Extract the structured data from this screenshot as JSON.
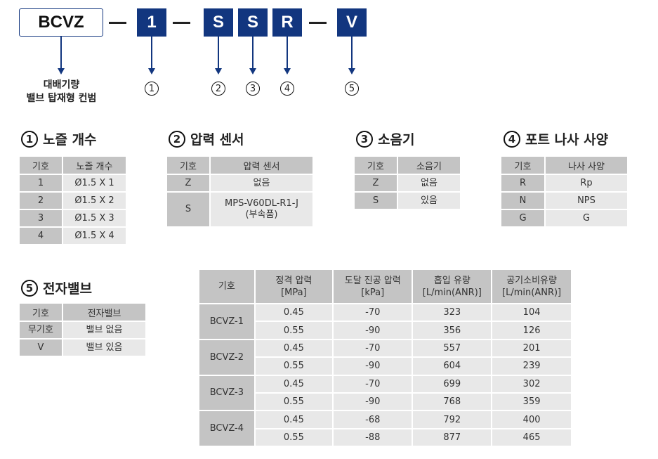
{
  "code": {
    "base": "BCVZ",
    "parts": [
      "1",
      "S",
      "S",
      "R",
      "V"
    ],
    "base_label": [
      "대배기량",
      "밸브 탑재형 컨범"
    ],
    "markers": [
      "①",
      "②",
      "③",
      "④",
      "⑤"
    ]
  },
  "sections": [
    {
      "num": "1",
      "title": "노즐 개수",
      "headers": [
        "기호",
        "노즐 개수"
      ],
      "rows": [
        [
          "1",
          "Ø1.5 X 1"
        ],
        [
          "2",
          "Ø1.5 X 2"
        ],
        [
          "3",
          "Ø1.5 X 3"
        ],
        [
          "4",
          "Ø1.5 X 4"
        ]
      ]
    },
    {
      "num": "2",
      "title": "압력 센서",
      "headers": [
        "기호",
        "압력 센서"
      ],
      "rows": [
        [
          "Z",
          "없음"
        ],
        [
          "S",
          "MPS-V60DL-R1-J\n(부속품)"
        ]
      ]
    },
    {
      "num": "3",
      "title": "소음기",
      "headers": [
        "기호",
        "소음기"
      ],
      "rows": [
        [
          "Z",
          "없음"
        ],
        [
          "S",
          "있음"
        ]
      ]
    },
    {
      "num": "4",
      "title": "포트 나사 사양",
      "headers": [
        "기호",
        "나사 사양"
      ],
      "rows": [
        [
          "R",
          "Rp"
        ],
        [
          "N",
          "NPS"
        ],
        [
          "G",
          "G"
        ]
      ]
    },
    {
      "num": "5",
      "title": "전자밸브",
      "headers": [
        "기호",
        "전자밸브"
      ],
      "rows": [
        [
          "무기호",
          "밸브 없음"
        ],
        [
          "V",
          "밸브 있음"
        ]
      ]
    }
  ],
  "spec": {
    "headers": [
      "기호",
      "정격 압력\n[MPa]",
      "도달 진공 압력\n[kPa]",
      "흡입 유량\n[L/min(ANR)]",
      "공기소비유량\n[L/min(ANR)]"
    ],
    "groups": [
      {
        "model": "BCVZ-1",
        "rows": [
          [
            "0.45",
            "-70",
            "323",
            "104"
          ],
          [
            "0.55",
            "-90",
            "356",
            "126"
          ]
        ]
      },
      {
        "model": "BCVZ-2",
        "rows": [
          [
            "0.45",
            "-70",
            "557",
            "201"
          ],
          [
            "0.55",
            "-90",
            "604",
            "239"
          ]
        ]
      },
      {
        "model": "BCVZ-3",
        "rows": [
          [
            "0.45",
            "-70",
            "699",
            "302"
          ],
          [
            "0.55",
            "-90",
            "768",
            "359"
          ]
        ]
      },
      {
        "model": "BCVZ-4",
        "rows": [
          [
            "0.45",
            "-68",
            "792",
            "400"
          ],
          [
            "0.55",
            "-88",
            "877",
            "465"
          ]
        ]
      }
    ]
  },
  "colors": {
    "accent": "#12367f",
    "header": "#c4c4c4",
    "cell": "#e8e8e8"
  }
}
